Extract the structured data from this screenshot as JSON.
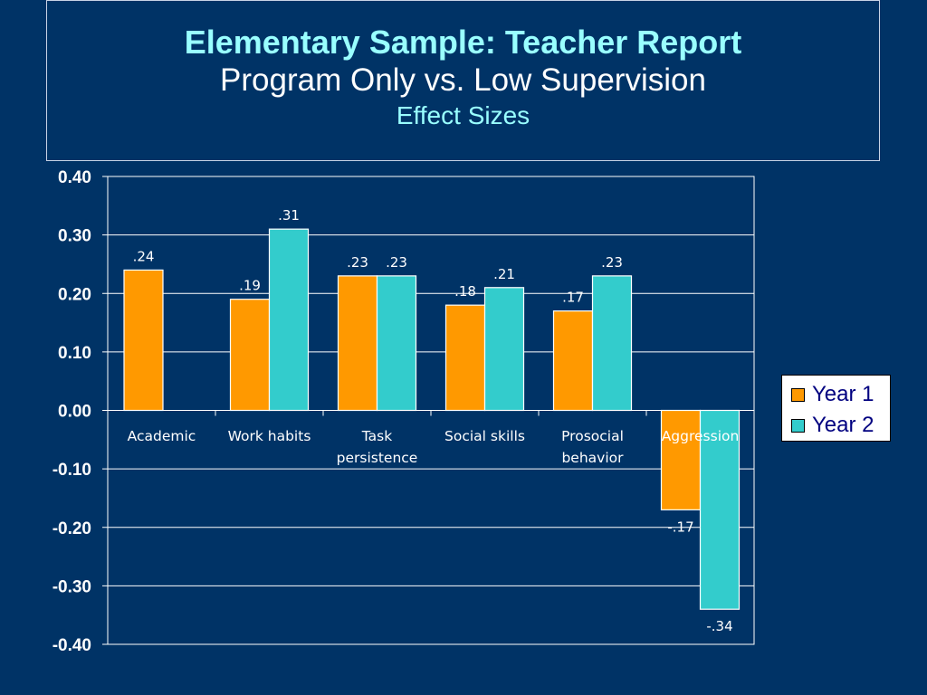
{
  "title": {
    "line1": "Elementary Sample: Teacher Report",
    "line2": "Program Only vs. Low Supervision",
    "line3": "Effect Sizes"
  },
  "colors": {
    "background": "#003366",
    "year1": "#ff9900",
    "year2": "#33cccc",
    "title_accent": "#99ffff"
  },
  "chart_data": {
    "type": "bar",
    "categories": [
      [
        "Academic"
      ],
      [
        "Work habits"
      ],
      [
        "Task",
        "persistence"
      ],
      [
        "Social skills"
      ],
      [
        "Prosocial",
        "behavior"
      ],
      [
        "Aggression"
      ]
    ],
    "series": [
      {
        "name": "Year 1",
        "values": [
          0.24,
          0.19,
          0.23,
          0.18,
          0.17,
          -0.17
        ],
        "labels": [
          ".24",
          ".19",
          ".23",
          ".18",
          ".17",
          "-.17"
        ]
      },
      {
        "name": "Year 2",
        "values": [
          null,
          0.31,
          0.23,
          0.21,
          0.23,
          -0.34
        ],
        "labels": [
          "",
          ".31",
          ".23",
          ".21",
          ".23",
          "-.34"
        ]
      }
    ],
    "yticks": [
      "0.40",
      "0.30",
      "0.20",
      "0.10",
      "0.00",
      "-0.10",
      "-0.20",
      "-0.30",
      "-0.40"
    ],
    "ylim": [
      -0.4,
      0.4
    ],
    "grid": true,
    "legend_position": "right"
  }
}
